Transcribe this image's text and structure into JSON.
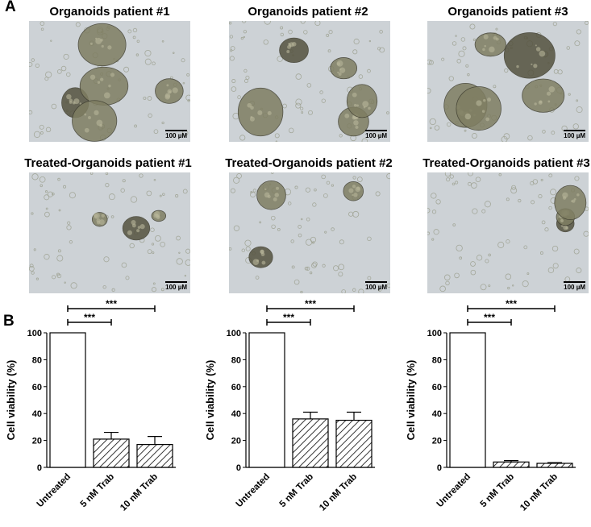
{
  "panel_labels": {
    "a": "A",
    "b": "B"
  },
  "micrographs": {
    "scale_label": "100 µM",
    "row1": [
      "Organoids patient #1",
      "Organoids patient #2",
      "Organoids patient #3"
    ],
    "row2": [
      "Treated-Organoids patient #1",
      "Treated-Organoids patient #2",
      "Treated-Organoids patient #3"
    ]
  },
  "colors": {
    "micro_background": "#cdd2d6",
    "organoid": "#7f7e62",
    "organoid_dark": "#55533f",
    "bar_fill": "#ffffff",
    "bar_stroke": "#000000"
  },
  "chart_data": [
    {
      "type": "bar",
      "categories": [
        "Untreated",
        "5 nM Trab",
        "10 nM Trab"
      ],
      "values": [
        100,
        21,
        17
      ],
      "errors": [
        0,
        5,
        6
      ],
      "patterns": [
        "none",
        "hatch",
        "hatch"
      ],
      "ylabel": "Cell viability (%)",
      "ylim": [
        0,
        100
      ],
      "yticks": [
        0,
        20,
        40,
        60,
        80,
        100
      ],
      "significance": [
        {
          "from": 0,
          "to": 1,
          "label": "***"
        },
        {
          "from": 0,
          "to": 2,
          "label": "***"
        }
      ]
    },
    {
      "type": "bar",
      "categories": [
        "Untreated",
        "5 nM Trab",
        "10 nM Trab"
      ],
      "values": [
        100,
        36,
        35
      ],
      "errors": [
        0,
        5,
        6
      ],
      "patterns": [
        "none",
        "hatch",
        "hatch"
      ],
      "ylabel": "Cell viability (%)",
      "ylim": [
        0,
        100
      ],
      "yticks": [
        0,
        20,
        40,
        60,
        80,
        100
      ],
      "significance": [
        {
          "from": 0,
          "to": 1,
          "label": "***"
        },
        {
          "from": 0,
          "to": 2,
          "label": "***"
        }
      ]
    },
    {
      "type": "bar",
      "categories": [
        "Untreated",
        "5 nM Trab",
        "10 nM Trab"
      ],
      "values": [
        100,
        4,
        3
      ],
      "errors": [
        0,
        1,
        0.5
      ],
      "patterns": [
        "none",
        "hatch",
        "hatch"
      ],
      "ylabel": "Cell viability (%)",
      "ylim": [
        0,
        100
      ],
      "yticks": [
        0,
        20,
        40,
        60,
        80,
        100
      ],
      "significance": [
        {
          "from": 0,
          "to": 1,
          "label": "***"
        },
        {
          "from": 0,
          "to": 2,
          "label": "***"
        }
      ]
    }
  ]
}
